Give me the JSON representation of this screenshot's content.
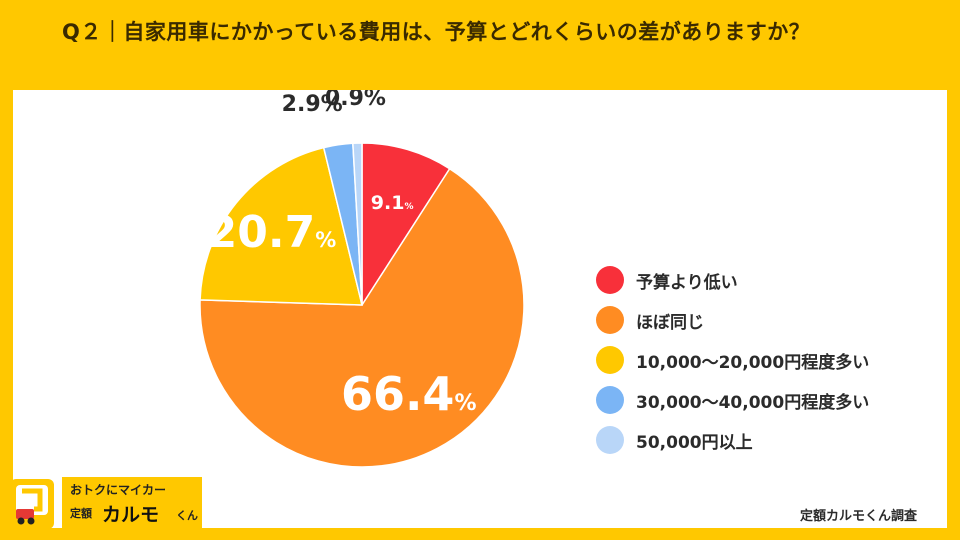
{
  "header": {
    "title": "Q２｜自家用車にかかっている費用は、予算とどれくらいの差がありますか？"
  },
  "chart_data": {
    "type": "pie",
    "slices": [
      {
        "label": "予算より低い",
        "value": 9.1,
        "display": "9.1",
        "unit": "%",
        "color": "#F8303A"
      },
      {
        "label": "ほぼ同じ",
        "value": 66.4,
        "display": "66.4",
        "unit": "%",
        "color": "#FF8C22"
      },
      {
        "label": "10,000〜20,000円程度多い",
        "value": 20.7,
        "display": "20.7",
        "unit": "%",
        "color": "#FFC800"
      },
      {
        "label": "30,000〜40,000円程度多い",
        "value": 2.9,
        "display": "2.9%",
        "unit": "",
        "color": "#7BB5F5"
      },
      {
        "label": "50,000円以上",
        "value": 0.9,
        "display": "0.9%",
        "unit": "",
        "color": "#B9D6F8"
      }
    ],
    "start_angle_deg": 0,
    "direction": "clockwise",
    "legend_position": "right"
  },
  "logo": {
    "tagline": "おトクにマイカー",
    "prefix": "定額",
    "name": "カルモ",
    "suffix": "くん",
    "icon_name": "karumo-car-icon"
  },
  "footer": {
    "source": "定額カルモくん調査"
  }
}
